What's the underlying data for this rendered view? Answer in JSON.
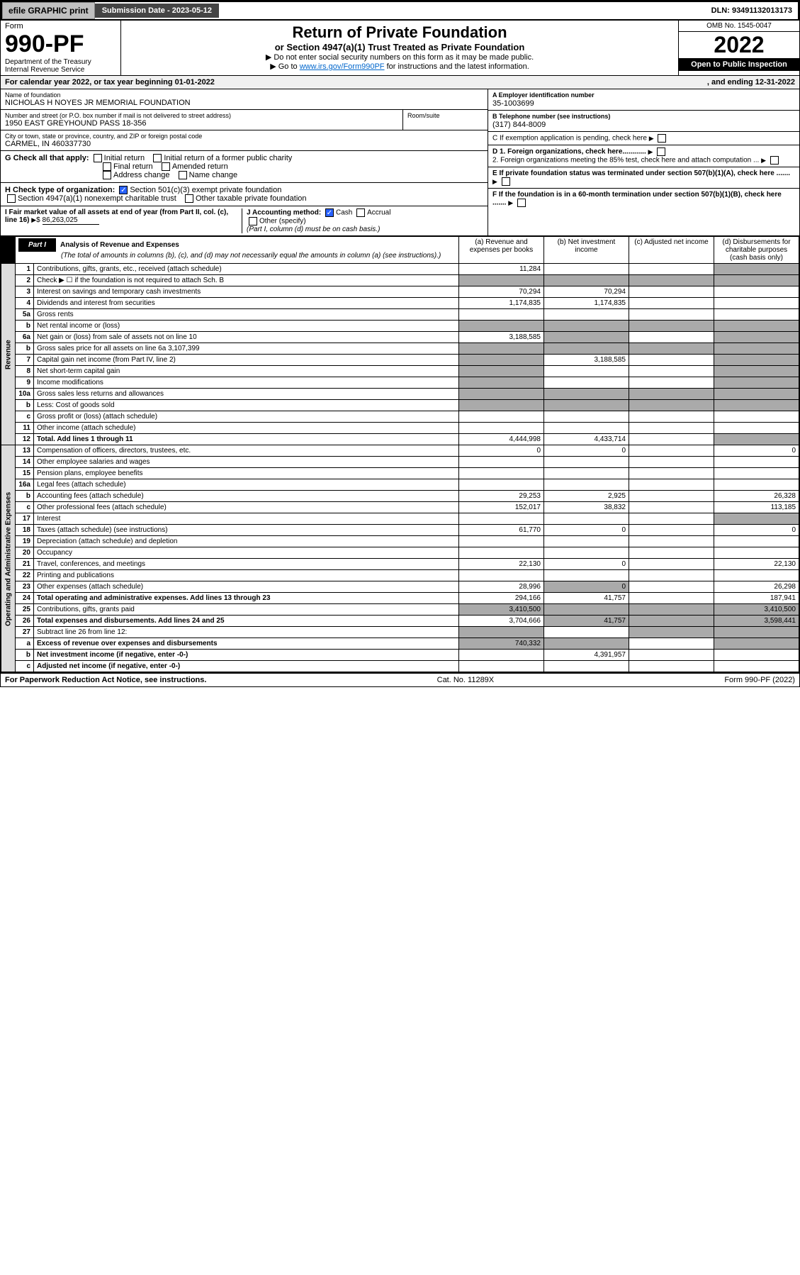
{
  "top": {
    "efile": "efile GRAPHIC print",
    "submission": "Submission Date - 2023-05-12",
    "dln": "DLN: 93491132013173"
  },
  "header": {
    "form_label": "Form",
    "form_num": "990-PF",
    "dept": "Department of the Treasury\nInternal Revenue Service",
    "title": "Return of Private Foundation",
    "subtitle": "or Section 4947(a)(1) Trust Treated as Private Foundation",
    "note1": "▶ Do not enter social security numbers on this form as it may be made public.",
    "note2_pre": "▶ Go to ",
    "note2_link": "www.irs.gov/Form990PF",
    "note2_post": " for instructions and the latest information.",
    "omb": "OMB No. 1545-0047",
    "year": "2022",
    "open": "Open to Public Inspection"
  },
  "calendar": {
    "text": "For calendar year 2022, or tax year beginning 01-01-2022",
    "ending": ", and ending 12-31-2022"
  },
  "org": {
    "name_label": "Name of foundation",
    "name": "NICHOLAS H NOYES JR MEMORIAL FOUNDATION",
    "addr_label": "Number and street (or P.O. box number if mail is not delivered to street address)",
    "addr": "1950 EAST GREYHOUND PASS 18-356",
    "room_label": "Room/suite",
    "city_label": "City or town, state or province, country, and ZIP or foreign postal code",
    "city": "CARMEL, IN  460337730",
    "ein_label": "A Employer identification number",
    "ein": "35-1003699",
    "phone_label": "B Telephone number (see instructions)",
    "phone": "(317) 844-8009",
    "c_label": "C If exemption application is pending, check here",
    "d1": "D 1. Foreign organizations, check here............",
    "d2": "2. Foreign organizations meeting the 85% test, check here and attach computation ...",
    "e": "E If private foundation status was terminated under section 507(b)(1)(A), check here .......",
    "f": "F If the foundation is in a 60-month termination under section 507(b)(1)(B), check here .......",
    "g_label": "G Check all that apply:",
    "g_opts": [
      "Initial return",
      "Initial return of a former public charity",
      "Final return",
      "Amended return",
      "Address change",
      "Name change"
    ],
    "h_label": "H Check type of organization:",
    "h1": "Section 501(c)(3) exempt private foundation",
    "h2": "Section 4947(a)(1) nonexempt charitable trust",
    "h3": "Other taxable private foundation",
    "i_label": "I Fair market value of all assets at end of year (from Part II, col. (c), line 16)",
    "i_val": "86,263,025",
    "j_label": "J Accounting method:",
    "j_cash": "Cash",
    "j_accrual": "Accrual",
    "j_other": "Other (specify)",
    "j_note": "(Part I, column (d) must be on cash basis.)"
  },
  "part1": {
    "tag": "Part I",
    "title": "Analysis of Revenue and Expenses",
    "title_note": "(The total of amounts in columns (b), (c), and (d) may not necessarily equal the amounts in column (a) (see instructions).)",
    "cols": {
      "a": "(a) Revenue and expenses per books",
      "b": "(b) Net investment income",
      "c": "(c) Adjusted net income",
      "d": "(d) Disbursements for charitable purposes (cash basis only)"
    }
  },
  "sections": {
    "revenue": "Revenue",
    "expenses": "Operating and Administrative Expenses"
  },
  "rows": [
    {
      "n": "1",
      "desc": "Contributions, gifts, grants, etc., received (attach schedule)",
      "a": "11,284",
      "b": "",
      "c": "",
      "d": ""
    },
    {
      "n": "2",
      "desc": "Check ▶ ☐ if the foundation is not required to attach Sch. B",
      "a": "",
      "b": "",
      "c": "",
      "d": ""
    },
    {
      "n": "3",
      "desc": "Interest on savings and temporary cash investments",
      "a": "70,294",
      "b": "70,294",
      "c": "",
      "d": ""
    },
    {
      "n": "4",
      "desc": "Dividends and interest from securities",
      "a": "1,174,835",
      "b": "1,174,835",
      "c": "",
      "d": ""
    },
    {
      "n": "5a",
      "desc": "Gross rents",
      "a": "",
      "b": "",
      "c": "",
      "d": ""
    },
    {
      "n": "b",
      "desc": "Net rental income or (loss)",
      "a": "",
      "b": "",
      "c": "",
      "d": ""
    },
    {
      "n": "6a",
      "desc": "Net gain or (loss) from sale of assets not on line 10",
      "a": "3,188,585",
      "b": "",
      "c": "",
      "d": ""
    },
    {
      "n": "b",
      "desc": "Gross sales price for all assets on line 6a   3,107,399",
      "a": "",
      "b": "",
      "c": "",
      "d": ""
    },
    {
      "n": "7",
      "desc": "Capital gain net income (from Part IV, line 2)",
      "a": "",
      "b": "3,188,585",
      "c": "",
      "d": ""
    },
    {
      "n": "8",
      "desc": "Net short-term capital gain",
      "a": "",
      "b": "",
      "c": "",
      "d": ""
    },
    {
      "n": "9",
      "desc": "Income modifications",
      "a": "",
      "b": "",
      "c": "",
      "d": ""
    },
    {
      "n": "10a",
      "desc": "Gross sales less returns and allowances",
      "a": "",
      "b": "",
      "c": "",
      "d": ""
    },
    {
      "n": "b",
      "desc": "Less: Cost of goods sold",
      "a": "",
      "b": "",
      "c": "",
      "d": ""
    },
    {
      "n": "c",
      "desc": "Gross profit or (loss) (attach schedule)",
      "a": "",
      "b": "",
      "c": "",
      "d": ""
    },
    {
      "n": "11",
      "desc": "Other income (attach schedule)",
      "a": "",
      "b": "",
      "c": "",
      "d": ""
    },
    {
      "n": "12",
      "desc": "Total. Add lines 1 through 11",
      "bold": true,
      "a": "4,444,998",
      "b": "4,433,714",
      "c": "",
      "d": ""
    },
    {
      "n": "13",
      "desc": "Compensation of officers, directors, trustees, etc.",
      "a": "0",
      "b": "0",
      "c": "",
      "d": "0"
    },
    {
      "n": "14",
      "desc": "Other employee salaries and wages",
      "a": "",
      "b": "",
      "c": "",
      "d": ""
    },
    {
      "n": "15",
      "desc": "Pension plans, employee benefits",
      "a": "",
      "b": "",
      "c": "",
      "d": ""
    },
    {
      "n": "16a",
      "desc": "Legal fees (attach schedule)",
      "a": "",
      "b": "",
      "c": "",
      "d": ""
    },
    {
      "n": "b",
      "desc": "Accounting fees (attach schedule)",
      "a": "29,253",
      "b": "2,925",
      "c": "",
      "d": "26,328"
    },
    {
      "n": "c",
      "desc": "Other professional fees (attach schedule)",
      "a": "152,017",
      "b": "38,832",
      "c": "",
      "d": "113,185"
    },
    {
      "n": "17",
      "desc": "Interest",
      "a": "",
      "b": "",
      "c": "",
      "d": ""
    },
    {
      "n": "18",
      "desc": "Taxes (attach schedule) (see instructions)",
      "a": "61,770",
      "b": "0",
      "c": "",
      "d": "0"
    },
    {
      "n": "19",
      "desc": "Depreciation (attach schedule) and depletion",
      "a": "",
      "b": "",
      "c": "",
      "d": ""
    },
    {
      "n": "20",
      "desc": "Occupancy",
      "a": "",
      "b": "",
      "c": "",
      "d": ""
    },
    {
      "n": "21",
      "desc": "Travel, conferences, and meetings",
      "a": "22,130",
      "b": "0",
      "c": "",
      "d": "22,130"
    },
    {
      "n": "22",
      "desc": "Printing and publications",
      "a": "",
      "b": "",
      "c": "",
      "d": ""
    },
    {
      "n": "23",
      "desc": "Other expenses (attach schedule)",
      "a": "28,996",
      "b": "0",
      "c": "",
      "d": "26,298"
    },
    {
      "n": "24",
      "desc": "Total operating and administrative expenses. Add lines 13 through 23",
      "bold": true,
      "a": "294,166",
      "b": "41,757",
      "c": "",
      "d": "187,941"
    },
    {
      "n": "25",
      "desc": "Contributions, gifts, grants paid",
      "a": "3,410,500",
      "b": "",
      "c": "",
      "d": "3,410,500"
    },
    {
      "n": "26",
      "desc": "Total expenses and disbursements. Add lines 24 and 25",
      "bold": true,
      "a": "3,704,666",
      "b": "41,757",
      "c": "",
      "d": "3,598,441"
    },
    {
      "n": "27",
      "desc": "Subtract line 26 from line 12:",
      "a": "",
      "b": "",
      "c": "",
      "d": ""
    },
    {
      "n": "a",
      "desc": "Excess of revenue over expenses and disbursements",
      "bold": true,
      "a": "740,332",
      "b": "",
      "c": "",
      "d": ""
    },
    {
      "n": "b",
      "desc": "Net investment income (if negative, enter -0-)",
      "bold": true,
      "a": "",
      "b": "4,391,957",
      "c": "",
      "d": ""
    },
    {
      "n": "c",
      "desc": "Adjusted net income (if negative, enter -0-)",
      "bold": true,
      "a": "",
      "b": "",
      "c": "",
      "d": ""
    }
  ],
  "grays": {
    "1": [
      "d"
    ],
    "2": [
      "a",
      "b",
      "c",
      "d"
    ],
    "5b": [
      "a",
      "b",
      "c",
      "d"
    ],
    "6a": [
      "b",
      "d"
    ],
    "6b": [
      "a",
      "b",
      "c",
      "d"
    ],
    "7": [
      "a",
      "d"
    ],
    "8": [
      "a",
      "d"
    ],
    "9": [
      "a",
      "d"
    ],
    "10a": [
      "a",
      "b",
      "c",
      "d"
    ],
    "10b": [
      "a",
      "b",
      "c",
      "d"
    ],
    "12": [
      "d"
    ],
    "19": [
      "d"
    ],
    "25": [
      "b"
    ],
    "27": [
      "a",
      "b",
      "c",
      "d"
    ],
    "27a": [
      "b",
      "c",
      "d"
    ],
    "27b": [
      "a",
      "c",
      "d"
    ],
    "27c": [
      "a",
      "b",
      "d"
    ]
  },
  "footer": {
    "left": "For Paperwork Reduction Act Notice, see instructions.",
    "mid": "Cat. No. 11289X",
    "right": "Form 990-PF (2022)"
  }
}
